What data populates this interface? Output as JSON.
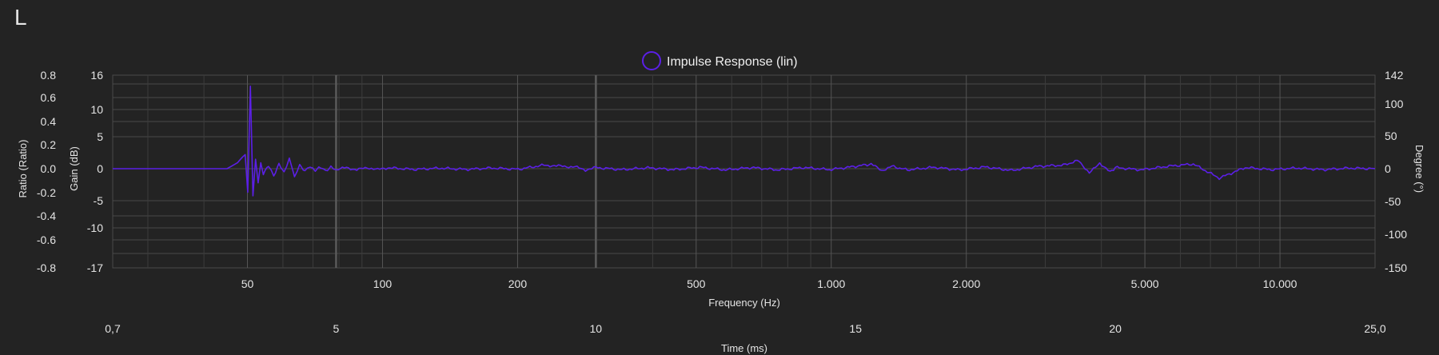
{
  "channel_label": "L",
  "colors": {
    "series": "#5b1fe6",
    "grid": "#4a4a4a",
    "background": "#232323"
  },
  "chart_data": {
    "type": "line",
    "legend": {
      "label": "Impulse Response (lin)",
      "position": "top"
    },
    "grid": true,
    "axes": {
      "y_ratio": {
        "label": "Ratio (Ratio)",
        "ticks": [
          "0.8",
          "0.6",
          "0.4",
          "0.2",
          "0.0",
          "-0.2",
          "-0.4",
          "-0.6",
          "-0.8"
        ],
        "range": [
          -0.8,
          0.8
        ]
      },
      "y_gain": {
        "label": "Gain (dB)",
        "ticks": [
          "16",
          "10",
          "5",
          "0",
          "-5",
          "-10",
          "-17"
        ]
      },
      "y_degree": {
        "label": "Degree (°)",
        "ticks": [
          "142",
          "100",
          "50",
          "0",
          "-50",
          "-100",
          "-150"
        ]
      },
      "x_freq": {
        "label": "Frequency (Hz)",
        "ticks": [
          "50",
          "100",
          "200",
          "500",
          "1.000",
          "2.000",
          "5.000",
          "10.000"
        ]
      },
      "x_time": {
        "label": "Time (ms)",
        "ticks": [
          "0,7",
          "5",
          "10",
          "15",
          "20",
          "25,0"
        ],
        "range": [
          0.7,
          25.0
        ]
      }
    },
    "series": [
      {
        "name": "Impulse Response (lin)",
        "x_ms": [
          0.7,
          2.2,
          2.9,
          3.1,
          3.2,
          3.25,
          3.3,
          3.35,
          3.4,
          3.45,
          3.5,
          3.55,
          3.6,
          3.7,
          3.8,
          3.9,
          4.0,
          4.1,
          4.2,
          4.3,
          4.4,
          4.5,
          4.6,
          4.7,
          4.8,
          4.9,
          5.0,
          5.2,
          5.4,
          5.6,
          5.8,
          6.0,
          6.5,
          7.0,
          7.5,
          8.0,
          8.5,
          9.0,
          9.6,
          9.8,
          10.0,
          10.5,
          11.0,
          11.5,
          12.0,
          12.5,
          13.0,
          13.5,
          14.0,
          14.5,
          15.0,
          15.3,
          15.5,
          15.7,
          16.0,
          16.5,
          17.0,
          17.5,
          18.0,
          18.5,
          19.0,
          19.3,
          19.5,
          19.7,
          19.9,
          20.0,
          20.5,
          21.0,
          21.5,
          22.0,
          22.5,
          23.0,
          23.5,
          24.0,
          24.5,
          25.0
        ],
        "y_ratio": [
          0.0,
          0.0,
          0.0,
          0.05,
          0.1,
          0.12,
          -0.2,
          0.7,
          -0.23,
          0.08,
          -0.12,
          0.05,
          -0.05,
          0.03,
          -0.06,
          0.04,
          -0.03,
          0.09,
          -0.07,
          0.03,
          -0.02,
          0.02,
          -0.01,
          0.01,
          -0.02,
          0.015,
          -0.01,
          0.01,
          -0.01,
          0.01,
          -0.008,
          0.008,
          -0.006,
          0.005,
          -0.006,
          0.006,
          -0.005,
          0.03,
          0.015,
          -0.01,
          0.01,
          -0.008,
          0.008,
          -0.008,
          0.012,
          -0.01,
          0.01,
          -0.01,
          0.01,
          -0.008,
          0.02,
          0.04,
          -0.015,
          0.02,
          -0.01,
          0.012,
          -0.01,
          0.015,
          -0.015,
          0.02,
          0.03,
          0.07,
          -0.04,
          0.05,
          -0.03,
          0.01,
          -0.01,
          0.02,
          0.04,
          -0.08,
          0.01,
          -0.008,
          0.006,
          -0.008,
          0.005,
          0.0
        ]
      }
    ]
  }
}
